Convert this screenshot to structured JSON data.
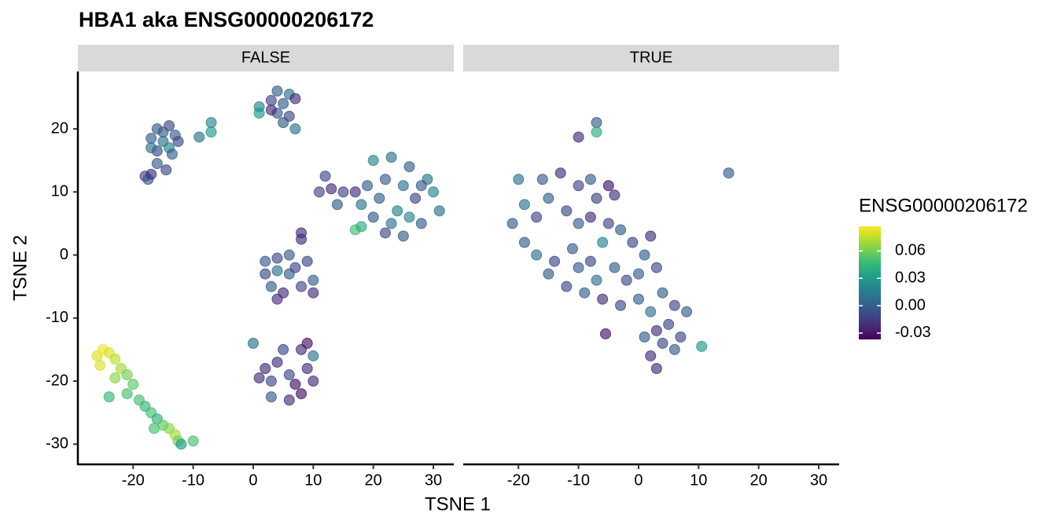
{
  "chart_data": {
    "type": "scatter",
    "title": "HBA1  aka ENSG00000206172",
    "x_label": "TSNE 1",
    "y_label": "TSNE 2",
    "legend_title": "ENSG00000206172",
    "xlim": [
      -29.2,
      33.4
    ],
    "xticks": [
      -20,
      -10,
      0,
      10,
      20,
      30
    ],
    "ylim": [
      -33.2,
      29.1
    ],
    "yticks": [
      -30,
      -20,
      -10,
      0,
      10,
      20
    ],
    "color_lim": [
      -0.037,
      0.087
    ],
    "color_ticks": [
      0.06,
      0.03,
      {
        "value": 0,
        "label": "0.00"
      },
      -0.03
    ],
    "color_stops": [
      "#440154",
      "#482878",
      "#3e4989",
      "#31688e",
      "#26828e",
      "#1f9e89",
      "#35b779",
      "#6ece58",
      "#b5de2b",
      "#fde725"
    ],
    "panels": [
      {
        "name": "FALSE",
        "x": [
          -16,
          -14,
          -13,
          -15,
          -17,
          -14,
          -16,
          -13.5,
          -17,
          -12.5,
          -15,
          -16,
          -14.5,
          -18,
          -17.5,
          -17,
          -7,
          -7,
          -9,
          4,
          6,
          3,
          5,
          7,
          4,
          6,
          5,
          7,
          1,
          1,
          3,
          20,
          23,
          26,
          29,
          30,
          31,
          28,
          25,
          22,
          20,
          18,
          19,
          22,
          25,
          27,
          24,
          21,
          23,
          28,
          26,
          15,
          13,
          11,
          14,
          12,
          17,
          17,
          18,
          8,
          8,
          2,
          4,
          6,
          9,
          10,
          8,
          5,
          3,
          2,
          6,
          4,
          7,
          10,
          4,
          5,
          8,
          10,
          9,
          10,
          8,
          6,
          3,
          3,
          2,
          4,
          6,
          7,
          1,
          0,
          9,
          -26,
          -25,
          -24,
          -23,
          -25.5,
          -22,
          -23,
          -21,
          -20,
          -21,
          -24,
          -19,
          -18,
          -17,
          -16,
          -15,
          -14,
          -13,
          -12.5,
          -12,
          -10,
          -16.5
        ],
        "y": [
          20,
          20.5,
          19,
          18,
          18.5,
          17,
          16.5,
          16,
          17,
          18,
          19.5,
          14.5,
          13.5,
          12.5,
          12,
          12.8,
          21,
          19.5,
          18.7,
          26,
          25.5,
          24.5,
          24,
          24.8,
          22.5,
          22,
          21,
          20,
          23.5,
          22.5,
          23,
          15,
          15.5,
          14,
          12,
          10,
          7,
          5,
          3,
          3.5,
          6,
          8,
          11,
          12,
          11,
          9,
          7,
          9,
          5,
          11,
          6,
          10,
          10.5,
          10,
          8,
          12.5,
          10,
          4,
          4.5,
          3.5,
          2.5,
          -1,
          -0.5,
          0,
          -1,
          -4,
          -5,
          -6,
          -5,
          -3,
          -3,
          -2.5,
          -2,
          -6,
          -7,
          -15,
          -15,
          -16,
          -18,
          -20,
          -22,
          -23,
          -22.5,
          -20,
          -18,
          -17,
          -19,
          -20.5,
          -19.5,
          -14,
          -14,
          -16,
          -15,
          -15.5,
          -16.5,
          -17.5,
          -18,
          -19.5,
          -19,
          -20.5,
          -22,
          -22.5,
          -23,
          -24,
          -25,
          -26,
          -27,
          -27.5,
          -28.5,
          -29.5,
          -30,
          -29.5,
          -27.5
        ],
        "values": [
          0,
          -0.01,
          0,
          0.01,
          0,
          0.02,
          -0.01,
          0,
          0.01,
          -0.01,
          0,
          0,
          -0.01,
          -0.01,
          0,
          -0.02,
          0.02,
          0.03,
          0.01,
          0,
          0.01,
          -0.01,
          0,
          -0.02,
          0,
          -0.01,
          0,
          0.01,
          0.02,
          0.03,
          -0.02,
          0.02,
          0.01,
          0,
          0.01,
          0.02,
          0.01,
          0,
          0,
          -0.01,
          0,
          0.01,
          0,
          0,
          0.01,
          -0.01,
          0.02,
          0,
          0.01,
          0,
          0.02,
          -0.01,
          -0.02,
          -0.01,
          0,
          -0.01,
          -0.02,
          0.05,
          0.04,
          -0.02,
          -0.02,
          0,
          -0.01,
          0,
          -0.01,
          0,
          -0.01,
          -0.02,
          0,
          -0.01,
          0,
          0.01,
          -0.01,
          -0.02,
          -0.02,
          -0.01,
          -0.02,
          0.01,
          -0.02,
          -0.02,
          -0.03,
          -0.02,
          0,
          -0.01,
          -0.02,
          -0.02,
          -0.01,
          -0.03,
          -0.02,
          0.01,
          -0.03,
          0.08,
          0.085,
          0.08,
          0.075,
          0.08,
          0.07,
          0.065,
          0.06,
          0.055,
          0.05,
          0.045,
          0.05,
          0.045,
          0.05,
          0.04,
          0.055,
          0.065,
          0.07,
          0.06,
          0.03,
          0.05,
          0.05
        ]
      },
      {
        "name": "TRUE",
        "x": [
          -7,
          -7,
          -10,
          15,
          -20,
          -16,
          -13,
          -10,
          -8,
          -5,
          -4,
          -7,
          -21,
          -19,
          -17,
          -15,
          -12,
          -10,
          -8,
          -5,
          -3,
          -1,
          1,
          2,
          -19,
          -17,
          -14,
          -11,
          -8,
          -6,
          -4,
          -2,
          0,
          3,
          -15,
          -12,
          -9,
          -6,
          -3,
          0,
          2,
          4,
          6,
          8,
          5,
          3,
          1,
          4,
          6,
          2,
          3,
          7,
          -5.5,
          10.5,
          -7,
          -10
        ],
        "y": [
          21,
          19.5,
          18.7,
          13,
          12,
          12,
          13,
          11,
          12,
          11,
          9.5,
          9,
          5,
          8,
          6,
          9,
          7,
          5,
          6,
          5,
          4,
          2,
          0,
          3,
          2,
          0,
          -1,
          1,
          -1,
          2,
          -2,
          -4,
          -3,
          -2,
          -3,
          -5,
          -6,
          -7,
          -8,
          -7,
          -9,
          -6,
          -8,
          -9,
          -11,
          -12,
          -13,
          -14,
          -15,
          -16,
          -18,
          -13,
          -12.5,
          -14.5,
          -4,
          -2
        ],
        "values": [
          0,
          0.04,
          -0.02,
          0,
          0.01,
          0,
          -0.02,
          -0.01,
          0,
          -0.03,
          -0.02,
          -0.01,
          0,
          0.01,
          -0.01,
          0,
          -0.01,
          0,
          -0.02,
          -0.01,
          0,
          -0.01,
          0,
          -0.02,
          0,
          0.01,
          -0.01,
          0,
          -0.01,
          0.02,
          0,
          -0.01,
          0,
          -0.01,
          0,
          -0.01,
          0,
          -0.02,
          -0.01,
          0,
          0.01,
          0,
          -0.01,
          0,
          -0.01,
          -0.02,
          0,
          -0.01,
          0,
          -0.02,
          -0.02,
          -0.01,
          -0.03,
          0.03,
          0.01,
          0
        ]
      }
    ]
  }
}
